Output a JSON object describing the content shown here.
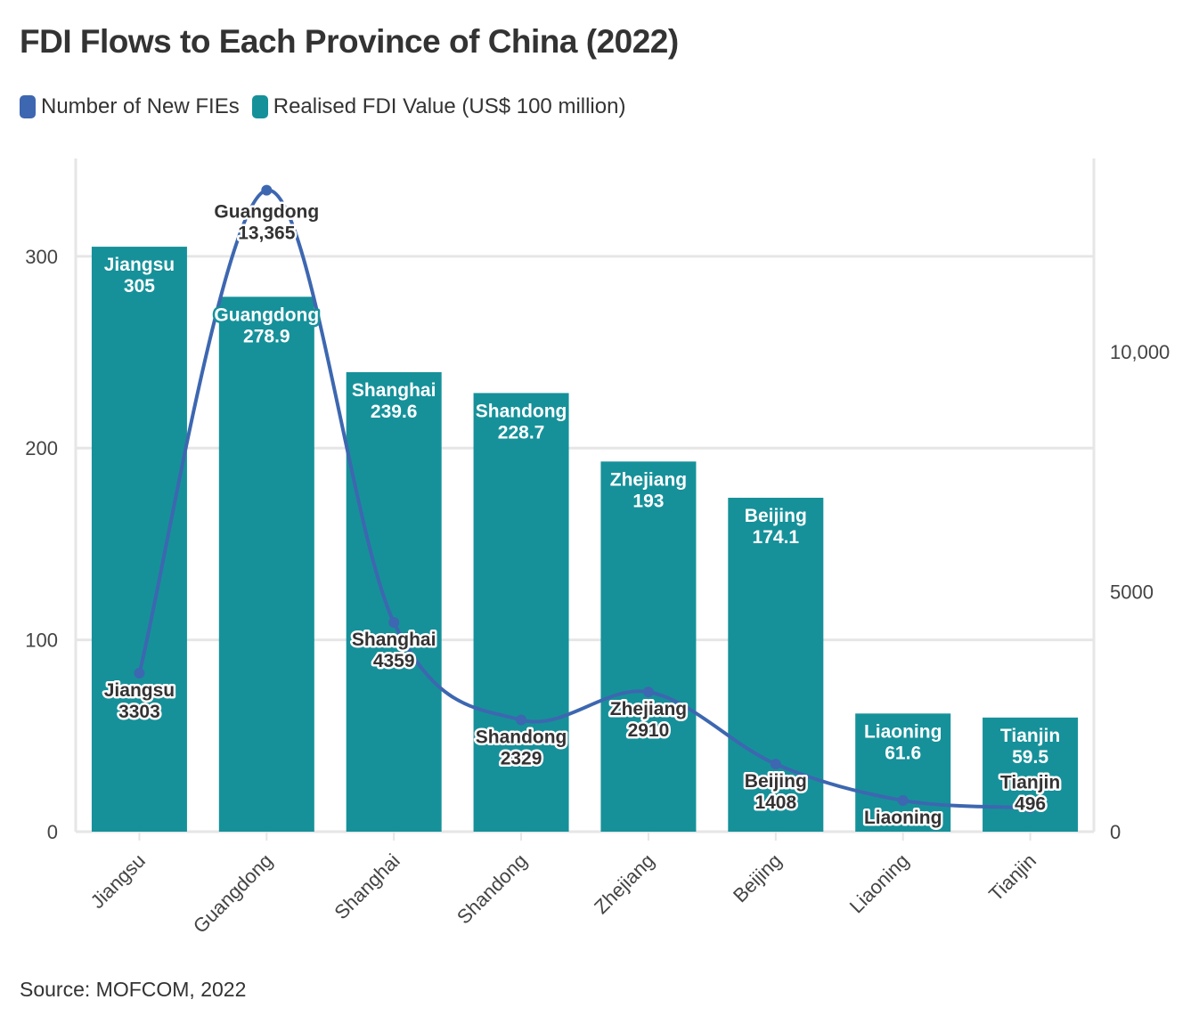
{
  "title": "FDI Flows to Each Province of China (2022)",
  "source": "Source: MOFCOM, 2022",
  "legend": [
    {
      "label": "Number of New FIEs",
      "color": "#3d67b0"
    },
    {
      "label": "Realised FDI Value (US$ 100 million)",
      "color": "#16919a"
    }
  ],
  "chart_data": {
    "type": "bar+line",
    "title": "FDI Flows to Each Province of China (2022)",
    "categories": [
      "Jiangsu",
      "Guangdong",
      "Shanghai",
      "Shandong",
      "Zhejiang",
      "Beijing",
      "Liaoning",
      "Tianjin"
    ],
    "series": [
      {
        "name": "Realised FDI Value (US$ 100 million)",
        "type": "bar",
        "axis": "left",
        "color": "#16919a",
        "values": [
          305,
          278.9,
          239.6,
          228.7,
          193,
          174.1,
          61.6,
          59.5
        ],
        "value_labels": [
          "305",
          "278.9",
          "239.6",
          "228.7",
          "193",
          "174.1",
          "61.6",
          "59.5"
        ]
      },
      {
        "name": "Number of New FIEs",
        "type": "line",
        "axis": "right",
        "color": "#3d67b0",
        "values": [
          3303,
          13365,
          4359,
          2329,
          2910,
          1408,
          650,
          496
        ],
        "value_labels": [
          "3303",
          "13,365",
          "4359",
          "2329",
          "2910",
          "1408",
          "",
          "496"
        ]
      }
    ],
    "left_axis": {
      "ticks": [
        0,
        100,
        200,
        300
      ],
      "tick_labels": [
        "0",
        "100",
        "200",
        "300"
      ],
      "range": [
        0,
        351
      ]
    },
    "right_axis": {
      "ticks": [
        0,
        5000,
        10000
      ],
      "tick_labels": [
        "0",
        "5000",
        "10,000"
      ],
      "range": [
        0,
        14026
      ]
    },
    "grid": true,
    "legend_position": "top-left"
  }
}
